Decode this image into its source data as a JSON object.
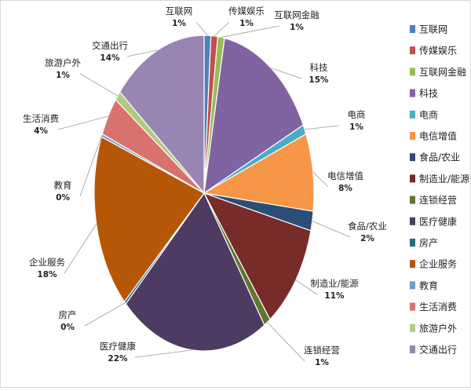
{
  "chart_data": {
    "type": "pie",
    "title": "",
    "legend_position": "right",
    "slices": [
      {
        "label": "互联网",
        "value": 1,
        "value_label": "1%",
        "color": "#4F81BD"
      },
      {
        "label": "传媒娱乐",
        "value": 1,
        "value_label": "1%",
        "color": "#C0504D"
      },
      {
        "label": "互联网金融",
        "value": 1,
        "value_label": "1%",
        "color": "#9BBB59"
      },
      {
        "label": "科技",
        "value": 15,
        "value_label": "15%",
        "color": "#8064A2"
      },
      {
        "label": "电商",
        "value": 1,
        "value_label": "1%",
        "color": "#4BACC6"
      },
      {
        "label": "电信增值",
        "value": 8,
        "value_label": "8%",
        "color": "#F79646"
      },
      {
        "label": "食品/农业",
        "value": 2,
        "value_label": "2%",
        "color": "#2C4D75"
      },
      {
        "label": "制造业/能源",
        "value": 11,
        "value_label": "11%",
        "color": "#772C2A"
      },
      {
        "label": "连锁经营",
        "value": 1,
        "value_label": "1%",
        "color": "#5F7530"
      },
      {
        "label": "医疗健康",
        "value": 22,
        "value_label": "22%",
        "color": "#4D3B62"
      },
      {
        "label": "房产",
        "value": 0.3,
        "value_label": "0%",
        "color": "#276A7C"
      },
      {
        "label": "企业服务",
        "value": 18,
        "value_label": "18%",
        "color": "#B65708"
      },
      {
        "label": "教育",
        "value": 0.3,
        "value_label": "0%",
        "color": "#729ACA"
      },
      {
        "label": "生活消费",
        "value": 4,
        "value_label": "4%",
        "color": "#D9716E"
      },
      {
        "label": "旅游户外",
        "value": 1,
        "value_label": "1%",
        "color": "#AFCB7D"
      },
      {
        "label": "交通出行",
        "value": 14,
        "value_label": "14%",
        "color": "#9985B3"
      }
    ]
  }
}
